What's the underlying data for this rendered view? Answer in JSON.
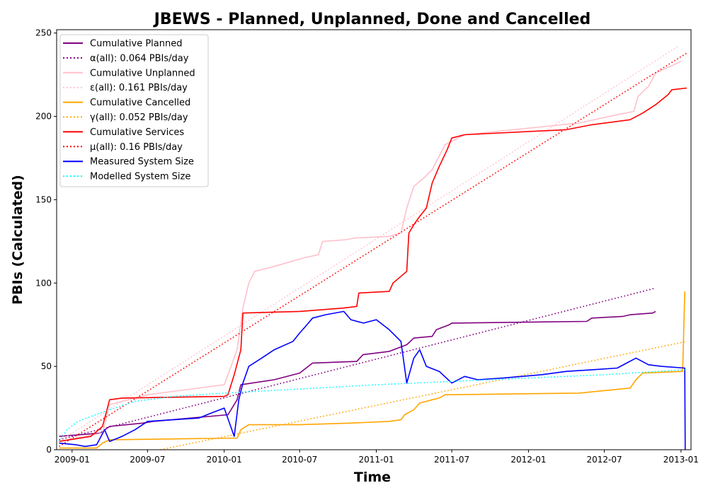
{
  "chart_data": {
    "type": "line",
    "title": "JBEWS - Planned, Unplanned, Done  and Cancelled",
    "xlabel": "Time",
    "ylabel": "PBIs (Calculated)",
    "xlim": [
      "2008-11-25",
      "2013-01-25"
    ],
    "ylim": [
      0,
      252
    ],
    "xticks": [
      "2009-01",
      "2009-07",
      "2010-01",
      "2010-07",
      "2011-01",
      "2011-07",
      "2012-01",
      "2012-07",
      "2013-01"
    ],
    "yticks": [
      0,
      50,
      100,
      150,
      200,
      250
    ],
    "grid": false,
    "legend_position": "top-left",
    "series": [
      {
        "name": "Cumulative Planned",
        "color": "#800080",
        "dash": "solid",
        "points": [
          [
            "2008-12-01",
            8
          ],
          [
            "2009-03-10",
            10
          ],
          [
            "2009-04-01",
            14
          ],
          [
            "2009-06-20",
            16
          ],
          [
            "2009-07-15",
            17
          ],
          [
            "2010-01-10",
            21
          ],
          [
            "2010-02-01",
            30
          ],
          [
            "2010-02-10",
            39
          ],
          [
            "2010-05-01",
            42
          ],
          [
            "2010-07-01",
            46
          ],
          [
            "2010-08-01",
            52
          ],
          [
            "2010-11-15",
            53
          ],
          [
            "2010-11-30",
            57
          ],
          [
            "2011-02-01",
            59
          ],
          [
            "2011-03-15",
            63
          ],
          [
            "2011-04-01",
            67
          ],
          [
            "2011-05-15",
            68
          ],
          [
            "2011-05-25",
            72
          ],
          [
            "2011-06-25",
            75
          ],
          [
            "2011-07-01",
            76
          ],
          [
            "2012-05-20",
            77
          ],
          [
            "2012-06-01",
            79
          ],
          [
            "2012-08-15",
            80
          ],
          [
            "2012-09-01",
            81
          ],
          [
            "2012-10-25",
            82
          ],
          [
            "2012-11-01",
            83
          ]
        ]
      },
      {
        "name": "α(all): 0.064 PBIs/day",
        "color": "#800080",
        "dash": "dotted",
        "points": [
          [
            "2008-12-01",
            6
          ],
          [
            "2012-11-01",
            97
          ]
        ]
      },
      {
        "name": "Cumulative Unplanned",
        "color": "#ffc0cb",
        "dash": "solid",
        "points": [
          [
            "2008-12-01",
            5
          ],
          [
            "2009-03-15",
            10
          ],
          [
            "2009-04-01",
            27
          ],
          [
            "2009-07-01",
            33
          ],
          [
            "2010-01-01",
            39
          ],
          [
            "2010-02-01",
            60
          ],
          [
            "2010-02-15",
            85
          ],
          [
            "2010-03-01",
            100
          ],
          [
            "2010-03-15",
            107
          ],
          [
            "2010-05-01",
            110
          ],
          [
            "2010-07-10",
            115
          ],
          [
            "2010-08-15",
            117
          ],
          [
            "2010-08-25",
            125
          ],
          [
            "2010-10-20",
            126
          ],
          [
            "2010-11-10",
            127
          ],
          [
            "2011-02-01",
            128
          ],
          [
            "2011-03-01",
            130
          ],
          [
            "2011-03-15",
            145
          ],
          [
            "2011-04-01",
            158
          ],
          [
            "2011-04-25",
            163
          ],
          [
            "2011-05-15",
            168
          ],
          [
            "2011-06-15",
            183
          ],
          [
            "2011-07-01",
            185
          ],
          [
            "2011-08-01",
            189
          ],
          [
            "2012-05-01",
            196
          ],
          [
            "2012-08-01",
            201
          ],
          [
            "2012-09-10",
            203
          ],
          [
            "2012-09-20",
            212
          ],
          [
            "2012-10-15",
            218
          ],
          [
            "2012-11-01",
            226
          ],
          [
            "2013-01-01",
            233
          ]
        ]
      },
      {
        "name": "ε(all): 0.161 PBIs/day",
        "color": "#ffc0cb",
        "dash": "dotted",
        "points": [
          [
            "2008-12-01",
            5
          ],
          [
            "2012-12-25",
            242
          ]
        ]
      },
      {
        "name": "Cumulative Cancelled",
        "color": "#ffa500",
        "dash": "solid",
        "points": [
          [
            "2008-12-01",
            1
          ],
          [
            "2009-03-01",
            1
          ],
          [
            "2009-03-15",
            4
          ],
          [
            "2009-04-01",
            6
          ],
          [
            "2010-02-01",
            7
          ],
          [
            "2010-02-10",
            12
          ],
          [
            "2010-03-01",
            15
          ],
          [
            "2010-07-01",
            15
          ],
          [
            "2010-11-01",
            16
          ],
          [
            "2011-02-01",
            17
          ],
          [
            "2011-03-01",
            18
          ],
          [
            "2011-03-10",
            21
          ],
          [
            "2011-04-01",
            24
          ],
          [
            "2011-04-15",
            28
          ],
          [
            "2011-05-15",
            30
          ],
          [
            "2011-06-01",
            31
          ],
          [
            "2011-06-15",
            33
          ],
          [
            "2011-07-01",
            33
          ],
          [
            "2012-05-01",
            34
          ],
          [
            "2012-09-01",
            37
          ],
          [
            "2012-09-15",
            42
          ],
          [
            "2012-10-01",
            46
          ],
          [
            "2013-01-05",
            47
          ],
          [
            "2013-01-10",
            95
          ]
        ]
      },
      {
        "name": "γ(all): 0.052 PBIs/day",
        "color": "#ffa500",
        "dash": "dotted",
        "points": [
          [
            "2009-08-01",
            0
          ],
          [
            "2013-01-15",
            65
          ]
        ]
      },
      {
        "name": "Cumulative Services",
        "color": "#ff0000",
        "dash": "solid",
        "points": [
          [
            "2008-12-01",
            5
          ],
          [
            "2009-02-15",
            8
          ],
          [
            "2009-03-15",
            14
          ],
          [
            "2009-04-01",
            30
          ],
          [
            "2009-05-01",
            31
          ],
          [
            "2010-01-01",
            32
          ],
          [
            "2010-01-10",
            33
          ],
          [
            "2010-01-25",
            45
          ],
          [
            "2010-02-10",
            60
          ],
          [
            "2010-02-15",
            82
          ],
          [
            "2010-07-01",
            83
          ],
          [
            "2010-10-15",
            85
          ],
          [
            "2010-11-15",
            86
          ],
          [
            "2010-11-20",
            94
          ],
          [
            "2011-02-01",
            95
          ],
          [
            "2011-02-10",
            100
          ],
          [
            "2011-03-15",
            107
          ],
          [
            "2011-03-20",
            130
          ],
          [
            "2011-04-01",
            135
          ],
          [
            "2011-04-15",
            140
          ],
          [
            "2011-05-01",
            145
          ],
          [
            "2011-05-15",
            160
          ],
          [
            "2011-06-01",
            170
          ],
          [
            "2011-06-20",
            180
          ],
          [
            "2011-07-01",
            187
          ],
          [
            "2011-08-01",
            189
          ],
          [
            "2012-04-01",
            192
          ],
          [
            "2012-06-01",
            195
          ],
          [
            "2012-09-01",
            198
          ],
          [
            "2012-10-01",
            202
          ],
          [
            "2012-11-01",
            207
          ],
          [
            "2012-12-01",
            213
          ],
          [
            "2012-12-10",
            216
          ],
          [
            "2013-01-15",
            217
          ]
        ]
      },
      {
        "name": "μ(all): 0.16 PBIs/day",
        "color": "#ff0000",
        "dash": "dotted",
        "points": [
          [
            "2008-12-01",
            2
          ],
          [
            "2013-01-15",
            238
          ]
        ]
      },
      {
        "name": "Measured System Size",
        "color": "#0000ff",
        "dash": "solid",
        "points": [
          [
            "2008-12-01",
            4
          ],
          [
            "2009-01-10",
            3
          ],
          [
            "2009-02-01",
            2
          ],
          [
            "2009-03-01",
            3
          ],
          [
            "2009-03-20",
            12
          ],
          [
            "2009-04-01",
            5
          ],
          [
            "2009-05-01",
            8
          ],
          [
            "2009-06-01",
            12
          ],
          [
            "2009-07-01",
            17
          ],
          [
            "2009-09-01",
            18
          ],
          [
            "2009-11-01",
            19
          ],
          [
            "2009-12-01",
            22
          ],
          [
            "2010-01-01",
            25
          ],
          [
            "2010-01-25",
            8
          ],
          [
            "2010-02-05",
            30
          ],
          [
            "2010-02-15",
            40
          ],
          [
            "2010-03-01",
            50
          ],
          [
            "2010-04-01",
            55
          ],
          [
            "2010-05-01",
            60
          ],
          [
            "2010-06-15",
            65
          ],
          [
            "2010-07-01",
            70
          ],
          [
            "2010-07-15",
            74
          ],
          [
            "2010-08-01",
            79
          ],
          [
            "2010-09-01",
            81
          ],
          [
            "2010-10-15",
            83
          ],
          [
            "2010-11-01",
            78
          ],
          [
            "2010-12-01",
            76
          ],
          [
            "2011-01-01",
            78
          ],
          [
            "2011-02-01",
            72
          ],
          [
            "2011-03-01",
            65
          ],
          [
            "2011-03-15",
            40
          ],
          [
            "2011-04-01",
            55
          ],
          [
            "2011-04-15",
            60
          ],
          [
            "2011-05-01",
            50
          ],
          [
            "2011-06-01",
            47
          ],
          [
            "2011-07-01",
            40
          ],
          [
            "2011-08-01",
            44
          ],
          [
            "2011-09-01",
            42
          ],
          [
            "2011-11-01",
            43
          ],
          [
            "2012-02-01",
            45
          ],
          [
            "2012-04-01",
            47
          ],
          [
            "2012-06-01",
            48
          ],
          [
            "2012-08-01",
            49
          ],
          [
            "2012-09-15",
            55
          ],
          [
            "2012-10-15",
            51
          ],
          [
            "2012-11-15",
            50
          ],
          [
            "2013-01-10",
            49
          ],
          [
            "2013-01-11",
            0
          ]
        ]
      },
      {
        "name": "Modelled System Size",
        "color": "#00ffff",
        "dash": "dotted",
        "points": [
          [
            "2008-12-01",
            5
          ],
          [
            "2008-12-20",
            12
          ],
          [
            "2009-01-15",
            17
          ],
          [
            "2009-02-15",
            20
          ],
          [
            "2009-04-01",
            24
          ],
          [
            "2009-06-01",
            29
          ],
          [
            "2009-09-01",
            32
          ],
          [
            "2010-01-01",
            34
          ],
          [
            "2010-06-01",
            36
          ],
          [
            "2011-01-01",
            39
          ],
          [
            "2011-07-01",
            41
          ],
          [
            "2012-01-01",
            43
          ],
          [
            "2012-07-01",
            45
          ],
          [
            "2013-01-10",
            48
          ]
        ]
      }
    ]
  }
}
